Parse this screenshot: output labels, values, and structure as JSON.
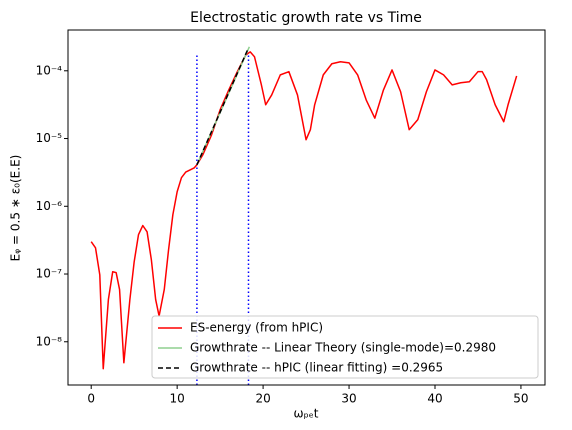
{
  "chart_data": {
    "type": "line",
    "title": "Electrostatic growth rate vs Time",
    "xlabel": "ωₚₑt",
    "ylabel": "Eᵩ = 0.5 ∗ ε₀(E.E)",
    "log_y": true,
    "xlim": [
      -2.7,
      52.8
    ],
    "ylim": [
      2.3e-09,
      0.0004
    ],
    "xticks": [
      0,
      10,
      20,
      30,
      40,
      50
    ],
    "yticks": [
      {
        "value": 1e-08,
        "label": "10⁻⁸"
      },
      {
        "value": 1e-07,
        "label": "10⁻⁷"
      },
      {
        "value": 1e-06,
        "label": "10⁻⁶"
      },
      {
        "value": 1e-05,
        "label": "10⁻⁵"
      },
      {
        "value": 0.0001,
        "label": "10⁻⁴"
      }
    ],
    "legend_corner": "lower right",
    "vlines": [
      12.3,
      18.3
    ],
    "vline_top": 0.00017,
    "vline_color": "#0000ff",
    "series": [
      {
        "name": "ES-energy (from hPIC)",
        "color": "#ff0000",
        "style": "solid",
        "x": [
          0,
          0.5,
          1,
          1.4,
          2,
          2.5,
          2.9,
          3.3,
          3.8,
          4.5,
          5,
          5.5,
          6,
          6.5,
          7,
          7.5,
          7.9,
          8.5,
          9,
          9.5,
          10,
          10.5,
          11,
          12,
          12.3,
          13,
          14,
          15,
          16,
          17,
          18,
          18.5,
          19,
          19.8,
          20.3,
          21,
          22,
          23,
          24,
          25,
          25.5,
          26,
          27,
          28,
          29,
          30,
          31,
          32,
          33,
          34,
          35,
          36,
          37,
          38,
          39,
          40,
          41,
          42,
          43,
          44,
          45,
          45.5,
          46,
          47,
          48,
          48.5,
          49.5
        ],
        "values": [
          3e-07,
          2.44e-07,
          9.7e-08,
          4e-09,
          4.2e-08,
          1.08e-07,
          1.05e-07,
          5.9e-08,
          4.9e-09,
          4.2e-08,
          1.52e-07,
          3.8e-07,
          5.2e-07,
          4.2e-07,
          1.62e-07,
          4.2e-08,
          2.4e-08,
          5.9e-08,
          2.28e-07,
          7.5e-07,
          1.64e-06,
          2.64e-06,
          3.2e-06,
          3.7e-06,
          4.1e-06,
          5.8e-06,
          1.13e-05,
          2.65e-05,
          5.2e-05,
          9.7e-05,
          0.000172,
          0.00019,
          0.000161,
          6.2e-05,
          3.15e-05,
          4.4e-05,
          8.7e-05,
          9.7e-05,
          4.4e-05,
          9.6e-06,
          1.35e-05,
          3.15e-05,
          8.7e-05,
          0.000127,
          0.000136,
          0.000131,
          8.7e-05,
          3.7e-05,
          2e-05,
          5.2e-05,
          0.000103,
          4.9e-05,
          1.35e-05,
          1.9e-05,
          4.9e-05,
          0.000103,
          8.7e-05,
          6.2e-05,
          6.65e-05,
          6.9e-05,
          9.7e-05,
          9.7e-05,
          7.4e-05,
          3.15e-05,
          1.77e-05,
          3.15e-05,
          8.4e-05
        ]
      },
      {
        "name": "Growthrate -- Linear Theory (single-mode)=0.2980",
        "color": "#8fcf8f",
        "style": "solid",
        "x": [
          12.3,
          18.4
        ],
        "values": [
          4.1e-06,
          0.000226
        ]
      },
      {
        "name": "Growthrate -- hPIC (linear fitting) =0.2965",
        "color": "#000000",
        "style": "dashed",
        "x": [
          12.3,
          18.2
        ],
        "values": [
          4.1e-06,
          0.000204
        ]
      }
    ]
  }
}
